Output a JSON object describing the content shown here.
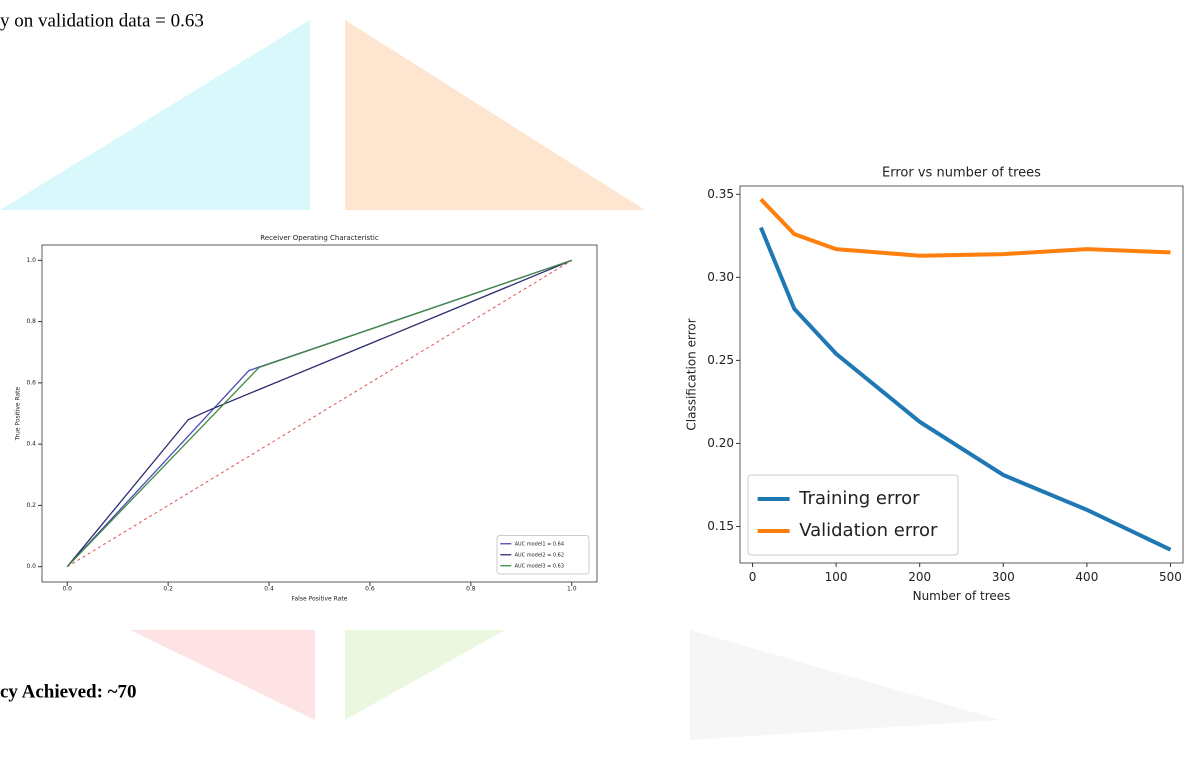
{
  "texts": {
    "top": "y on validation data = 0.63",
    "bottom": "cy Achieved: ~70"
  },
  "chart_data": [
    {
      "type": "line",
      "title": "Receiver Operating Characteristic",
      "xlabel": "False Positive Rate",
      "ylabel": "True Positive Rate",
      "xlim": [
        -0.05,
        1.05
      ],
      "ylim": [
        -0.05,
        1.05
      ],
      "xticks": [
        {
          "value": 0,
          "label": "0.0"
        },
        0.2,
        0.4,
        0.6,
        0.8,
        {
          "value": 1,
          "label": "1.0"
        }
      ],
      "yticks": [
        {
          "value": 0,
          "label": "0.0"
        },
        0.2,
        0.4,
        0.6,
        0.8,
        {
          "value": 1,
          "label": "1.0"
        }
      ],
      "legend": "lower right",
      "diagonal": {
        "x": [
          0,
          1
        ],
        "values": [
          0,
          1
        ],
        "color": "#e05050"
      },
      "series": [
        {
          "name": "AUC model1 = 0.64",
          "color": "#4a4ab8",
          "x": [
            0,
            0.36,
            1
          ],
          "values": [
            0,
            0.64,
            1
          ]
        },
        {
          "name": "AUC model2 = 0.62",
          "color": "#2c2c70",
          "x": [
            0,
            0.24,
            0.28,
            1
          ],
          "values": [
            0,
            0.48,
            0.51,
            1
          ]
        },
        {
          "name": "AUC model3 = 0.63",
          "color": "#3f8a3f",
          "x": [
            0,
            0.38,
            1
          ],
          "values": [
            0,
            0.65,
            1
          ]
        }
      ]
    },
    {
      "type": "line",
      "title": "Error vs number of trees",
      "xlabel": "Number of trees",
      "ylabel": "Classification error",
      "xlim": [
        -15,
        515
      ],
      "ylim": [
        0.128,
        0.355
      ],
      "xticks": [
        0,
        100,
        200,
        300,
        400,
        500
      ],
      "yticks": [
        0.15,
        {
          "value": 0.2,
          "label": "0.20"
        },
        0.25,
        {
          "value": 0.3,
          "label": "0.30"
        },
        0.35
      ],
      "legend": "lower left",
      "series": [
        {
          "name": "Training error",
          "color": "#1f77b4",
          "x": [
            10,
            50,
            100,
            200,
            300,
            400,
            500
          ],
          "values": [
            0.33,
            0.281,
            0.254,
            0.213,
            0.181,
            0.16,
            0.136
          ]
        },
        {
          "name": "Validation error",
          "color": "#ff7f0e",
          "x": [
            10,
            50,
            100,
            200,
            300,
            400,
            500
          ],
          "values": [
            0.347,
            0.326,
            0.317,
            0.313,
            0.314,
            0.317,
            0.315
          ]
        }
      ]
    }
  ]
}
